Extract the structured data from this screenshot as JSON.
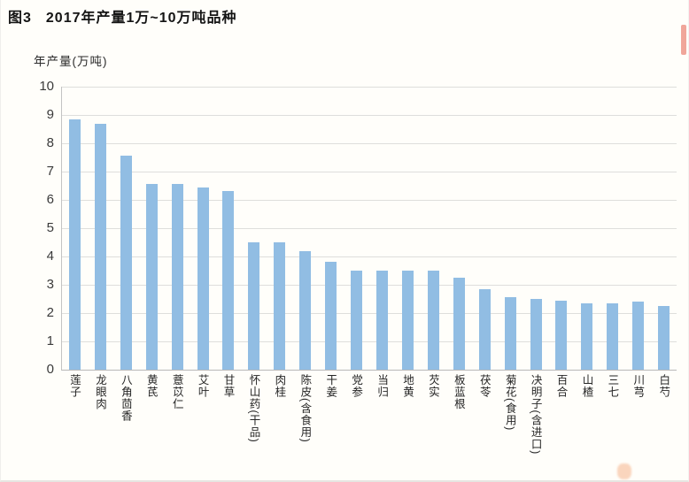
{
  "header": {
    "figure_label": "图3",
    "title": "2017年产量1万~10万吨品种"
  },
  "chart_data": {
    "type": "bar",
    "title": "图3 2017年产量1万~10万吨品种",
    "ylabel": "年产量(万吨)",
    "xlabel": "",
    "ylim": [
      0,
      10
    ],
    "ytick_step": 1,
    "yticks": [
      0,
      1,
      2,
      3,
      4,
      5,
      6,
      7,
      8,
      9,
      10
    ],
    "grid": true,
    "legend": "none",
    "bar_color": "#91bde3",
    "categories": [
      "莲子",
      "龙眼肉",
      "八角茴香",
      "黄芪",
      "薏苡仁",
      "艾叶",
      "甘草",
      "怀山药(干品)",
      "肉桂",
      "陈皮(含食用)",
      "干姜",
      "党参",
      "当归",
      "地黄",
      "芡实",
      "板蓝根",
      "茯苓",
      "菊花(食用)",
      "决明子(含进口)",
      "百合",
      "山楂",
      "三七",
      "川芎",
      "白芍"
    ],
    "values": [
      8.85,
      8.7,
      7.55,
      6.55,
      6.55,
      6.45,
      6.3,
      4.5,
      4.5,
      4.2,
      3.8,
      3.5,
      3.5,
      3.5,
      3.5,
      3.25,
      2.85,
      2.55,
      2.5,
      2.45,
      2.35,
      2.35,
      2.4,
      2.25
    ]
  }
}
